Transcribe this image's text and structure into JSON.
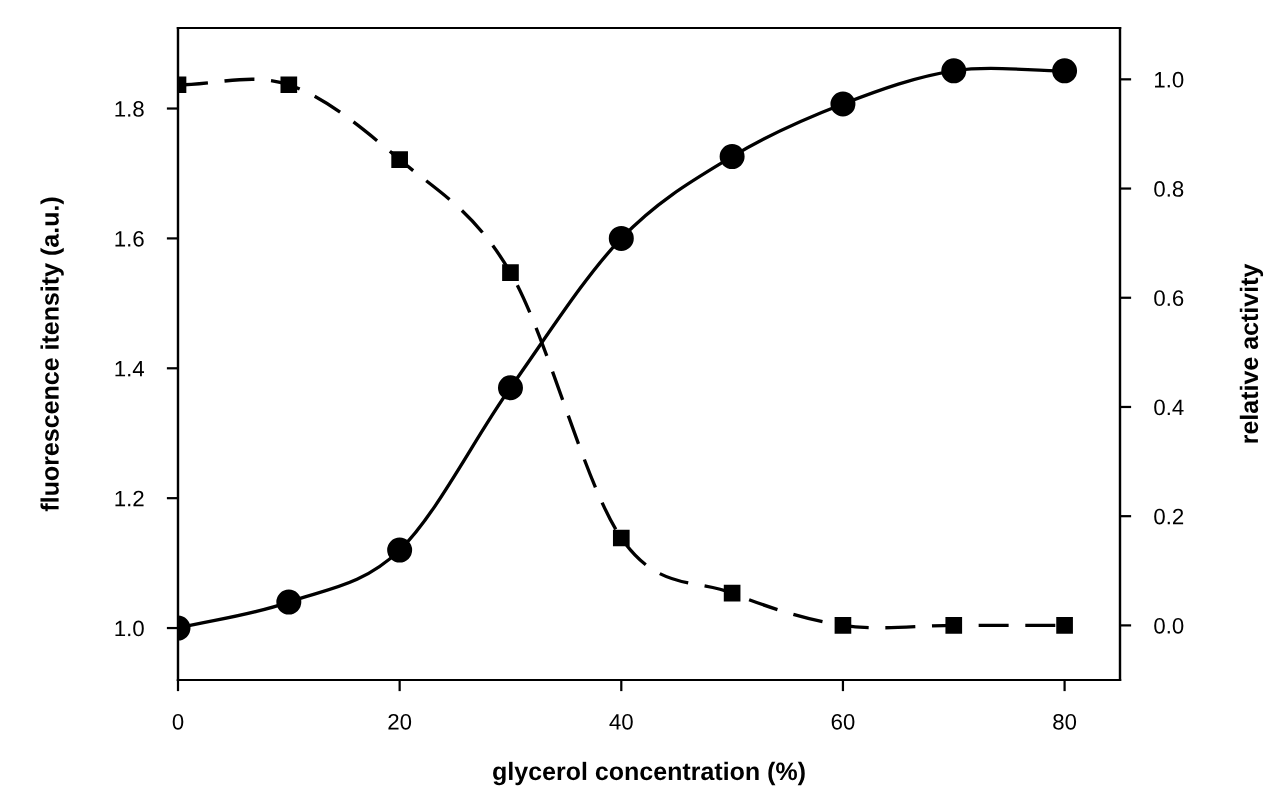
{
  "chart_data": {
    "type": "line",
    "xlabel": "glycerol concentration (%)",
    "ylabel": "fluorescence itensity (a.u.)",
    "y2label": "relative activity",
    "x": [
      0,
      10,
      20,
      30,
      40,
      50,
      60,
      70,
      80
    ],
    "series": [
      {
        "color": "#000000",
        "marker": "circle",
        "line_style": "solid",
        "values": [
          1.0,
          1.04,
          1.12,
          1.37,
          1.6,
          1.726,
          1.807,
          1.858,
          1.858
        ]
      },
      {
        "color": "#000000",
        "marker": "square",
        "line_style": "dashed",
        "axis": "y2",
        "values": [
          0.99,
          0.99,
          0.853,
          0.646,
          0.16,
          0.059,
          0.0,
          0.0,
          0.0
        ]
      }
    ],
    "xlim": [
      0,
      85
    ],
    "xticks": [
      0,
      20,
      40,
      60,
      80
    ],
    "ylim": [
      0.92,
      1.924
    ],
    "yticks": [
      {
        "value": 1,
        "label": "1.0"
      },
      1.2,
      1.4,
      1.6,
      1.8
    ],
    "y2lim": [
      -0.1,
      1.094
    ],
    "y2ticks": [
      {
        "value": 0,
        "label": "0.0"
      },
      0.2,
      0.4,
      0.6,
      0.8,
      {
        "value": 1,
        "label": "1.0"
      }
    ],
    "grid": false,
    "legend": false
  }
}
